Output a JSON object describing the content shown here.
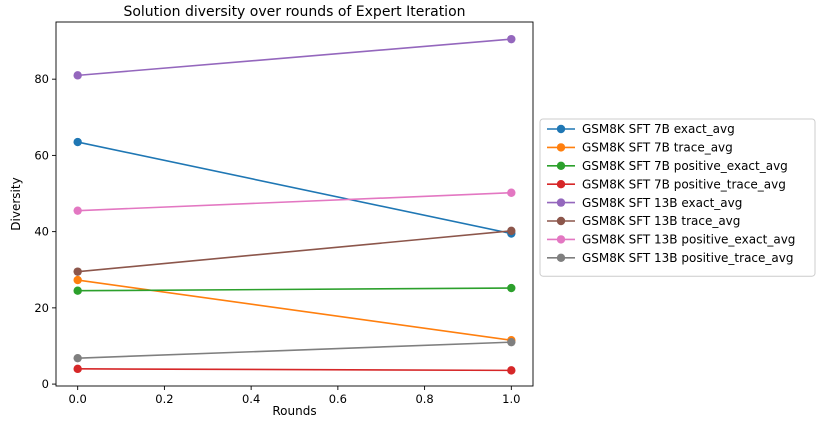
{
  "chart_data": {
    "type": "line",
    "title": "Solution diversity over rounds of Expert Iteration",
    "xlabel": "Rounds",
    "ylabel": "Diversity",
    "x": [
      0.0,
      1.0
    ],
    "xlim": [
      -0.05,
      1.05
    ],
    "ylim": [
      -0.5,
      95
    ],
    "xticks": [
      {
        "value": 0.0,
        "label": "0.0"
      },
      {
        "value": 0.2,
        "label": "0.2"
      },
      {
        "value": 0.4,
        "label": "0.4"
      },
      {
        "value": 0.6,
        "label": "0.6"
      },
      {
        "value": 0.8,
        "label": "0.8"
      },
      {
        "value": 1.0,
        "label": "1.0"
      }
    ],
    "yticks": [
      {
        "value": 0,
        "label": "0"
      },
      {
        "value": 20,
        "label": "20"
      },
      {
        "value": 40,
        "label": "40"
      },
      {
        "value": 60,
        "label": "60"
      },
      {
        "value": 80,
        "label": "80"
      }
    ],
    "grid": false,
    "legend_position": "outside right",
    "series": [
      {
        "name": "GSM8K SFT 7B exact_avg",
        "color": "#1f77b4",
        "values": [
          63.5,
          39.5
        ]
      },
      {
        "name": "GSM8K SFT 7B trace_avg",
        "color": "#ff7f0e",
        "values": [
          27.3,
          11.5
        ]
      },
      {
        "name": "GSM8K SFT 7B positive_exact_avg",
        "color": "#2ca02c",
        "values": [
          24.5,
          25.2
        ]
      },
      {
        "name": "GSM8K SFT 7B positive_trace_avg",
        "color": "#d62728",
        "values": [
          4.0,
          3.6
        ]
      },
      {
        "name": "GSM8K SFT 13B exact_avg",
        "color": "#9467bd",
        "values": [
          81.0,
          90.5
        ]
      },
      {
        "name": "GSM8K SFT 13B trace_avg",
        "color": "#8c564b",
        "values": [
          29.5,
          40.2
        ]
      },
      {
        "name": "GSM8K SFT 13B positive_exact_avg",
        "color": "#e377c2",
        "values": [
          45.5,
          50.2
        ]
      },
      {
        "name": "GSM8K SFT 13B positive_trace_avg",
        "color": "#7f7f7f",
        "values": [
          6.8,
          11.0
        ]
      }
    ]
  }
}
